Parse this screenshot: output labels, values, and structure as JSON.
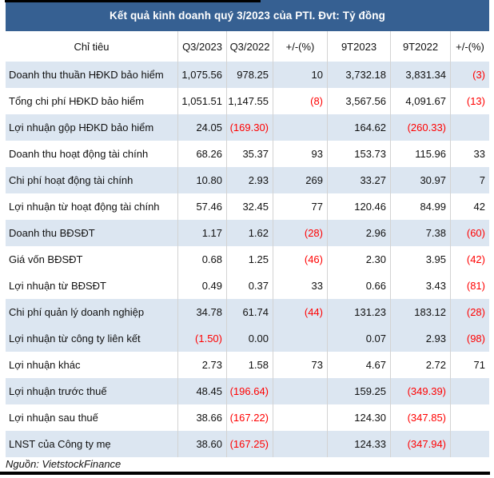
{
  "title": "Kết quả kinh doanh quý 3/2023 của PTI. Đvt: Tỷ đồng",
  "footer": "Nguồn: VietstockFinance",
  "colors": {
    "header_bg": "#366092",
    "row_shade": "#dce6f1",
    "negative": "#ff0000",
    "grid_line": "#d3d3d3",
    "title_text": "#ffffff",
    "body_text": "#111111",
    "accent_strip": "#000000"
  },
  "columns": [
    "Chỉ tiêu",
    "Q3/2023",
    "Q3/2022",
    "+/-(%)",
    "9T2023",
    "9T2022",
    "+/-(%)"
  ],
  "rows": [
    {
      "label": "Doanh thu thuần HĐKD bảo hiểm",
      "values": [
        "1,075.56",
        "978.25",
        "10",
        "3,732.18",
        "3,831.34",
        "(3)"
      ],
      "shaded": true
    },
    {
      "label": "Tổng chi phí HĐKD bảo hiểm",
      "values": [
        "1,051.51",
        "1,147.55",
        "(8)",
        "3,567.56",
        "4,091.67",
        "(13)"
      ],
      "shaded": false
    },
    {
      "label": "Lợi nhuận gộp HĐKD bảo hiểm",
      "values": [
        "24.05",
        "(169.30)",
        "",
        "164.62",
        "(260.33)",
        ""
      ],
      "shaded": true
    },
    {
      "label": "Doanh thu hoạt động tài chính",
      "values": [
        "68.26",
        "35.37",
        "93",
        "153.73",
        "115.96",
        "33"
      ],
      "shaded": false
    },
    {
      "label": "Chi phí hoạt động tài chính",
      "values": [
        "10.80",
        "2.93",
        "269",
        "33.27",
        "30.97",
        "7"
      ],
      "shaded": true
    },
    {
      "label": "Lợi nhuận từ hoạt động tài chính",
      "values": [
        "57.46",
        "32.45",
        "77",
        "120.46",
        "84.99",
        "42"
      ],
      "shaded": false
    },
    {
      "label": "Doanh thu BĐSĐT",
      "values": [
        "1.17",
        "1.62",
        "(28)",
        "2.96",
        "7.38",
        "(60)"
      ],
      "shaded": true
    },
    {
      "label": "Giá vốn BĐSĐT",
      "values": [
        "0.68",
        "1.25",
        "(46)",
        "2.30",
        "3.95",
        "(42)"
      ],
      "shaded": false
    },
    {
      "label": "Lợi nhuận từ BĐSĐT",
      "values": [
        "0.49",
        "0.37",
        "33",
        "0.66",
        "3.43",
        "(81)"
      ],
      "shaded": false
    },
    {
      "label": "Chi phí quản lý doanh nghiệp",
      "values": [
        "34.78",
        "61.74",
        "(44)",
        "131.23",
        "183.12",
        "(28)"
      ],
      "shaded": true
    },
    {
      "label": "Lợi nhuận từ công ty liên kết",
      "values": [
        "(1.50)",
        "0.00",
        "",
        "0.07",
        "2.93",
        "(98)"
      ],
      "shaded": true
    },
    {
      "label": "Lợi nhuận khác",
      "values": [
        "2.73",
        "1.58",
        "73",
        "4.67",
        "2.72",
        "71"
      ],
      "shaded": false
    },
    {
      "label": "Lợi nhuận trước thuế",
      "values": [
        "48.45",
        "(196.64)",
        "",
        "159.25",
        "(349.39)",
        ""
      ],
      "shaded": true
    },
    {
      "label": "Lợi nhuận sau thuế",
      "values": [
        "38.66",
        "(167.22)",
        "",
        "124.30",
        "(347.85)",
        ""
      ],
      "shaded": false
    },
    {
      "label": "LNST của Công ty mẹ",
      "values": [
        "38.60",
        "(167.25)",
        "",
        "124.33",
        "(347.94)",
        ""
      ],
      "shaded": true
    }
  ]
}
